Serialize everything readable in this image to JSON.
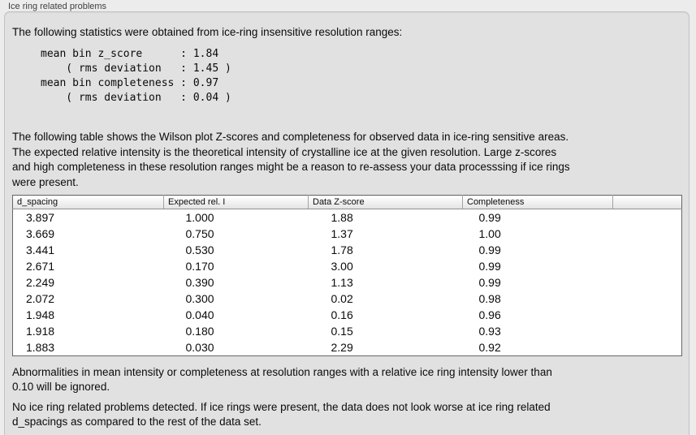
{
  "panel": {
    "title": "Ice ring related problems"
  },
  "intro_text": "The following statistics were obtained from ice-ring insensitive resolution ranges:",
  "stats_block": "mean bin z_score      : 1.84\n    ( rms deviation   : 1.45 )\nmean bin completeness : 0.97\n    ( rms deviation   : 0.04 )",
  "table_intro": "The following table shows the Wilson plot Z-scores and completeness for observed data in ice-ring sensitive areas.\nThe expected relative intensity is the theoretical intensity of crystalline ice at the given resolution. Large z-scores\nand high completeness in these resolution ranges might be a reason to re-assess your data processsing if ice rings\nwere present.",
  "table": {
    "columns": [
      "d_spacing",
      "Expected rel. I",
      "Data Z-score",
      "Completeness",
      ""
    ],
    "rows": [
      [
        "3.897",
        "1.000",
        "1.88",
        "0.99"
      ],
      [
        "3.669",
        "0.750",
        "1.37",
        "1.00"
      ],
      [
        "3.441",
        "0.530",
        "1.78",
        "0.99"
      ],
      [
        "2.671",
        "0.170",
        "3.00",
        "0.99"
      ],
      [
        "2.249",
        "0.390",
        "1.13",
        "0.99"
      ],
      [
        "2.072",
        "0.300",
        "0.02",
        "0.98"
      ],
      [
        "1.948",
        "0.040",
        "0.16",
        "0.96"
      ],
      [
        "1.918",
        "0.180",
        "0.15",
        "0.93"
      ],
      [
        "1.883",
        "0.030",
        "2.29",
        "0.92"
      ]
    ]
  },
  "ignore_note": "Abnormalities in mean intensity or completeness at resolution ranges with a relative ice ring intensity lower than\n0.10 will be ignored.",
  "conclusion": "No ice ring related problems detected. If ice rings were present, the data does not look worse at ice ring related\nd_spacings as compared to the rest of the data set."
}
